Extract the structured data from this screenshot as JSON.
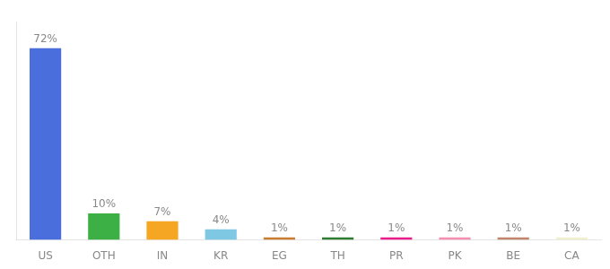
{
  "chart_data": {
    "type": "bar",
    "categories": [
      "US",
      "OTH",
      "IN",
      "KR",
      "EG",
      "TH",
      "PR",
      "PK",
      "BE",
      "CA"
    ],
    "values": [
      72,
      10,
      7,
      4,
      1,
      1,
      1,
      1,
      1,
      1
    ],
    "value_labels": [
      "72%",
      "10%",
      "7%",
      "4%",
      "1%",
      "1%",
      "1%",
      "1%",
      "1%",
      "1%"
    ],
    "colors": [
      "#4a6fdc",
      "#3cb044",
      "#f5a623",
      "#7ec8e3",
      "#c97d30",
      "#2e7d32",
      "#e91e8c",
      "#f48fb1",
      "#c0856a",
      "#f0f0d0"
    ],
    "ylim": [
      0,
      82
    ],
    "grid": false,
    "data_labels": true,
    "tick_labels": "x"
  }
}
